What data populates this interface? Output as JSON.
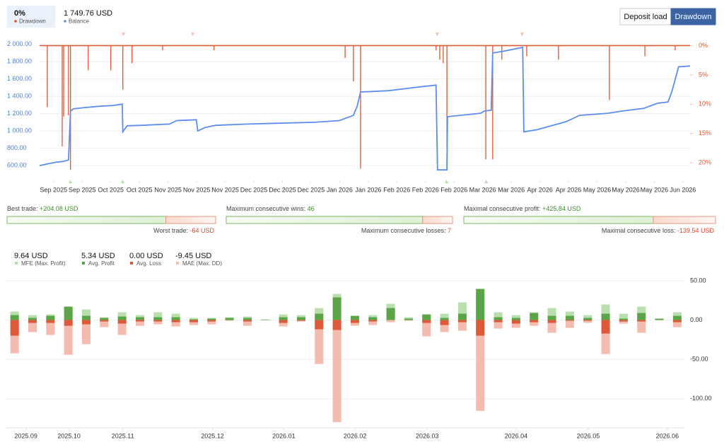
{
  "header": {
    "series": [
      {
        "name": "Drawdown",
        "current_label": "0%",
        "color": "#e0552e"
      },
      {
        "name": "Balance",
        "current_label": "1 749.76 USD",
        "color": "#5b8def"
      }
    ]
  },
  "tabs": [
    "Deposit load",
    "Drawdown"
  ],
  "stats": [
    {
      "positive": {
        "label": "Best trade:",
        "value": 204.08,
        "value_label": "+204.08 USD"
      },
      "negative": {
        "label": "Worst trade:",
        "value": -64,
        "value_label": "-64 USD"
      }
    },
    {
      "positive": {
        "label": "Maximum consecutive wins:",
        "value": 46
      },
      "negative": {
        "label": "Maximum consecutive losses:",
        "value": 7
      }
    },
    {
      "positive": {
        "label": "Maximal consecutive profit:",
        "value": 425.84,
        "value_label": "+425.84 USD"
      },
      "negative": {
        "label": "Maximal consecutive loss:",
        "value": -139.54,
        "value_label": "-139.54 USD"
      }
    }
  ],
  "chart_data": [
    {
      "type": "line",
      "xlim": [
        -0.49,
        22.25
      ],
      "xticks": [
        {
          "value": 0,
          "label": "Sep 2025"
        },
        {
          "value": 1,
          "label": "Sep 2025"
        },
        {
          "value": 2,
          "label": "Oct 2025"
        },
        {
          "value": 3,
          "label": "Oct 2025"
        },
        {
          "value": 4,
          "label": "Nov 2025"
        },
        {
          "value": 5,
          "label": "Nov 2025"
        },
        {
          "value": 6,
          "label": "Nov 2025"
        },
        {
          "value": 7,
          "label": "Dec 2025"
        },
        {
          "value": 8,
          "label": "Dec 2025"
        },
        {
          "value": 9,
          "label": "Dec 2025"
        },
        {
          "value": 10,
          "label": "Jan 2026"
        },
        {
          "value": 11,
          "label": "Jan 2026"
        },
        {
          "value": 12,
          "label": "Feb 2026"
        },
        {
          "value": 13,
          "label": "Feb 2026"
        },
        {
          "value": 14,
          "label": "Feb 2026"
        },
        {
          "value": 15,
          "label": "Mar 2026"
        },
        {
          "value": 16,
          "label": "Mar 2026"
        },
        {
          "value": 17,
          "label": "Apr 2026"
        },
        {
          "value": 18,
          "label": "Apr 2026"
        },
        {
          "value": 19,
          "label": "May 2026"
        },
        {
          "value": 20,
          "label": "May 2026"
        },
        {
          "value": 21,
          "label": "May 2026"
        },
        {
          "value": 22,
          "label": "Jun 2026"
        }
      ],
      "ylim": [
        430,
        2120
      ],
      "yticks": [
        {
          "value": 600,
          "label": "600.00"
        },
        {
          "value": 800,
          "label": "800.00"
        },
        {
          "value": 1000,
          "label": "1 000.00"
        },
        {
          "value": 1200,
          "label": "1 200.00"
        },
        {
          "value": 1400,
          "label": "1 400.00"
        },
        {
          "value": 1600,
          "label": "1 600.00"
        },
        {
          "value": 1800,
          "label": "1 800.00"
        },
        {
          "value": 2000,
          "label": "2 000.00"
        }
      ],
      "y2lim": [
        23,
        -2
      ],
      "y2ticks": [
        {
          "value": 0,
          "label": "0%"
        },
        {
          "value": 5,
          "label": "5%"
        },
        {
          "value": 10,
          "label": "10%"
        },
        {
          "value": 15,
          "label": "15%"
        },
        {
          "value": 20,
          "label": "20%"
        }
      ],
      "grid": true,
      "series": [
        {
          "name": "Drawdown",
          "color": "#e0552e",
          "axis": "y2",
          "style": "impulse",
          "x": [
            -0.22,
            0.3,
            0.35,
            0.52,
            0.59,
            1.21,
            2.0,
            2.42,
            2.74,
            3.81,
            5.61,
            10.19,
            10.48,
            10.73,
            13.37,
            13.5,
            13.62,
            13.75,
            15.11,
            15.35,
            15.67,
            16.54,
            17.65,
            19.43,
            20.67,
            21.73
          ],
          "values": [
            10.5,
            17.2,
            12.1,
            11.9,
            21.2,
            4.2,
            4.2,
            7.5,
            3.0,
            0.8,
            0.8,
            2.1,
            6.1,
            21.0,
            0.8,
            2.4,
            3.0,
            21.2,
            19.4,
            19.4,
            2.4,
            1.8,
            2.4,
            9.3,
            1.8,
            0.8
          ]
        },
        {
          "name": "Balance",
          "color": "#5b8def",
          "x": [
            -0.49,
            -0.22,
            0.1,
            0.35,
            0.52,
            0.59,
            0.69,
            1.09,
            1.58,
            2.08,
            2.4,
            2.42,
            2.57,
            3.07,
            4.05,
            4.3,
            4.99,
            5.04,
            5.29,
            5.66,
            6.77,
            9.12,
            9.99,
            10.48,
            10.61,
            10.73,
            11.72,
            12.58,
            13.37,
            13.42,
            13.75,
            13.77,
            14.93,
            15.06,
            15.3,
            15.35,
            15.72,
            16.4,
            16.44,
            16.91,
            17.4,
            17.9,
            18.39,
            19.38,
            19.88,
            20.62,
            21.11,
            21.48,
            21.61,
            21.85,
            22.25
          ],
          "values": [
            600,
            620,
            640,
            650,
            665,
            1230,
            1255,
            1270,
            1285,
            1295,
            1310,
            990,
            1060,
            1065,
            1080,
            1120,
            1130,
            1000,
            1040,
            1065,
            1080,
            1100,
            1120,
            1180,
            1285,
            1450,
            1465,
            1500,
            1530,
            551,
            551,
            1165,
            1205,
            1230,
            1240,
            1900,
            1920,
            1965,
            990,
            1015,
            1060,
            1105,
            1180,
            1205,
            1230,
            1260,
            1320,
            1335,
            1450,
            1740,
            1749.76
          ]
        }
      ]
    },
    {
      "type": "bar",
      "x": [
        0,
        1,
        2,
        3,
        4,
        5,
        6,
        7,
        8,
        9,
        10,
        11,
        12,
        13,
        14,
        15,
        16,
        17,
        18,
        19,
        20,
        21,
        22,
        23,
        24,
        25,
        26,
        27,
        28,
        29,
        30,
        31,
        32,
        33,
        34,
        35,
        36,
        37
      ],
      "xlim": [
        -0.5,
        37.4
      ],
      "xticks": [
        {
          "value": 0.63,
          "label": "2025.09"
        },
        {
          "value": 3.04,
          "label": "2025.10"
        },
        {
          "value": 6.04,
          "label": "2025.11"
        },
        {
          "value": 11.05,
          "label": "2025.12"
        },
        {
          "value": 15.03,
          "label": "2026.01"
        },
        {
          "value": 19.01,
          "label": "2026.02"
        },
        {
          "value": 23.04,
          "label": "2026.03"
        },
        {
          "value": 28.0,
          "label": "2026.04"
        },
        {
          "value": 32.03,
          "label": "2026.05"
        },
        {
          "value": 36.45,
          "label": "2026.06"
        }
      ],
      "ylim": [
        -137,
        58
      ],
      "yticks": [
        {
          "value": 50,
          "label": "50.00"
        },
        {
          "value": 0,
          "label": "0.00"
        },
        {
          "value": -50,
          "label": "-50.00"
        },
        {
          "value": -100,
          "label": "-100.00"
        }
      ],
      "grid": true,
      "series": [
        {
          "name": "MFE (Max. Profit)",
          "total_label": "9.64 USD",
          "color": "#b9e0ac",
          "values": [
            10.8,
            6.3,
            7.2,
            17.1,
            13.5,
            3.6,
            9.9,
            6.3,
            9.9,
            8.1,
            2.7,
            2.7,
            3.6,
            4.5,
            0.9,
            7.2,
            6.3,
            15.3,
            33.3,
            5.4,
            6.3,
            20.7,
            3.6,
            7.2,
            8.1,
            22.5,
            39.6,
            9.9,
            6.3,
            9.9,
            15.3,
            10.8,
            6.3,
            19.8,
            8.1,
            17.1,
            1.8,
            9.9
          ]
        },
        {
          "name": "Avg. Profit",
          "total_label": "5.34 USD",
          "color": "#5ba548",
          "values": [
            6.3,
            2.7,
            5.4,
            17.1,
            5.4,
            2.7,
            4.5,
            3.6,
            3.6,
            3.6,
            0.9,
            1.8,
            2.7,
            2.7,
            0.5,
            3.6,
            3.6,
            8.1,
            28.8,
            5.4,
            3.6,
            15.3,
            1.8,
            7.2,
            2.7,
            8.1,
            39.6,
            3.6,
            2.7,
            9.0,
            5.4,
            5.4,
            2.7,
            8.1,
            1.8,
            9.0,
            1.8,
            5.4
          ]
        },
        {
          "name": "Avg. Loss",
          "total_label": "0.00 USD",
          "color": "#e0583a",
          "values": [
            -19.8,
            -3.6,
            -3.6,
            -7.2,
            -5.4,
            -1.8,
            -4.5,
            -1.8,
            -1.8,
            -2.7,
            -2.7,
            -1.8,
            0,
            -1.8,
            0,
            -3.6,
            -0.9,
            -11.7,
            -12.6,
            -3.6,
            -1.8,
            0,
            0,
            -3.6,
            -6.3,
            -2.7,
            -19.8,
            -2.7,
            -4.5,
            -2.7,
            -3.6,
            -0.9,
            -0.9,
            -17.1,
            -1.8,
            -1.8,
            0,
            -2.7
          ]
        },
        {
          "name": "MAE (Max. DD)",
          "total_label": "-9.45 USD",
          "color": "#f4bcae",
          "values": [
            -42.3,
            -15.3,
            -18.9,
            -44.1,
            -30.6,
            -9.0,
            -18.9,
            -7.2,
            -5.4,
            -8.1,
            -6.3,
            -5.4,
            -0.9,
            -7.2,
            0,
            -8.1,
            -1.8,
            -55.8,
            -129.7,
            -7.2,
            -6.3,
            -2.7,
            -0.9,
            -20.7,
            -15.3,
            -13.5,
            -115.3,
            -10.8,
            -9.9,
            -7.2,
            -16.2,
            -9.9,
            -3.6,
            -43.2,
            -4.5,
            -16.2,
            0,
            -9.0
          ]
        }
      ]
    }
  ]
}
